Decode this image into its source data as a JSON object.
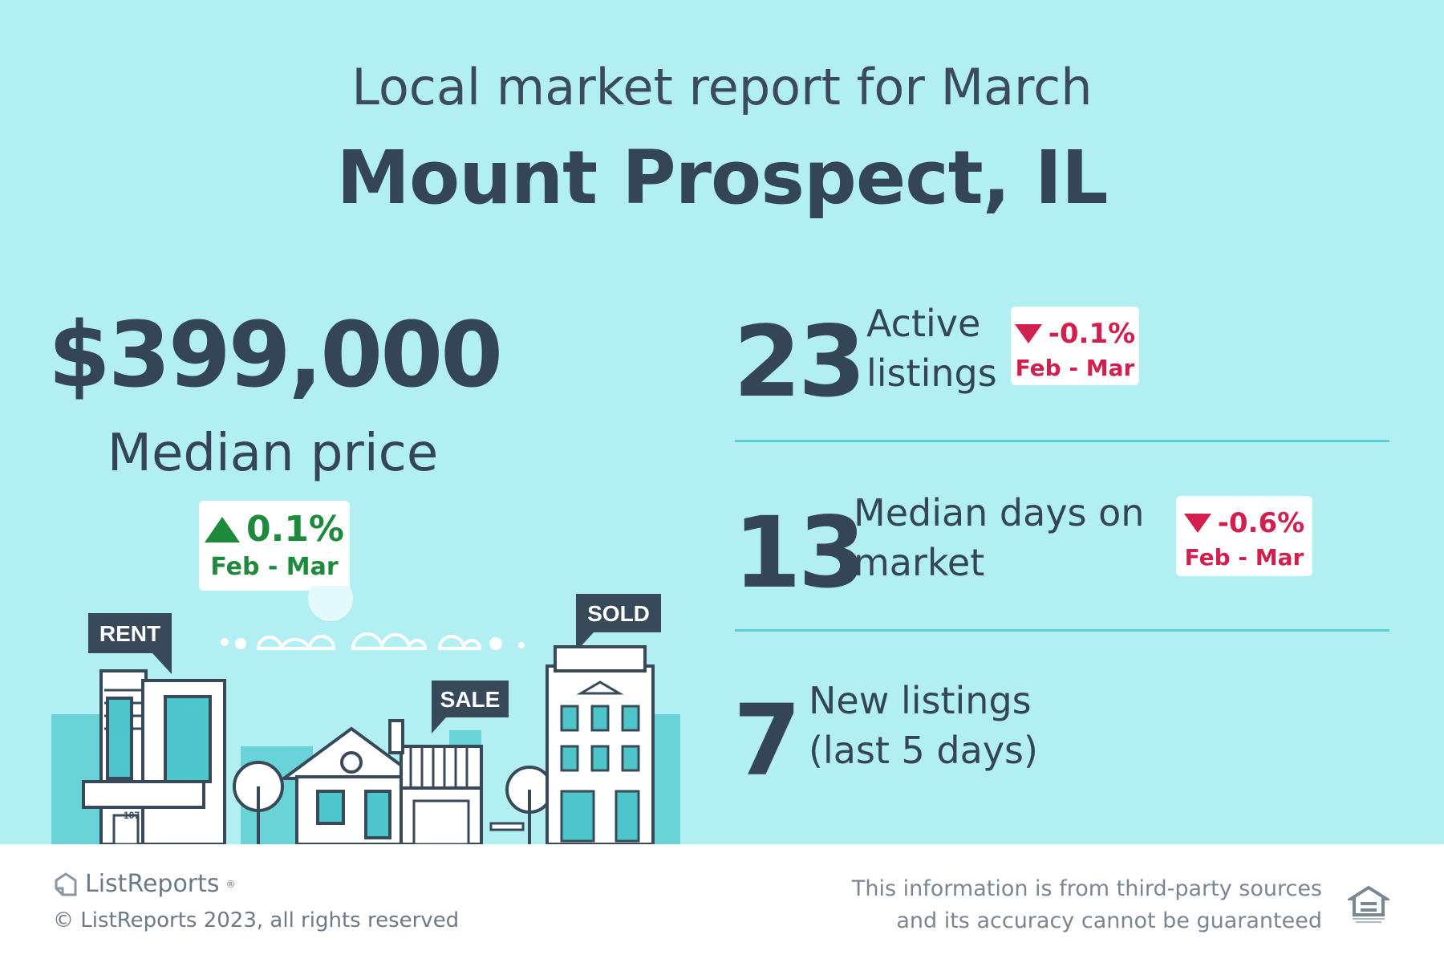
{
  "header": {
    "subtitle": "Local market report for March",
    "title": "Mount Prospect, IL"
  },
  "median_price": {
    "value": "$399,000",
    "label": "Median price",
    "change": "0.1%",
    "period": "Feb - Mar",
    "direction": "up"
  },
  "stats": [
    {
      "value": "23",
      "label_line1": "Active",
      "label_line2": "listings",
      "change": "-0.1%",
      "period": "Feb - Mar",
      "direction": "down"
    },
    {
      "value": "13",
      "label_line1": "Median days on",
      "label_line2": "market",
      "change": "-0.6%",
      "period": "Feb - Mar",
      "direction": "down"
    },
    {
      "value": "7",
      "label_line1": "New listings",
      "label_line2": "(last 5 days)"
    }
  ],
  "illustration": {
    "signs": [
      "RENT",
      "SALE",
      "SOLD"
    ],
    "house_number": "107"
  },
  "footer": {
    "brand": "ListReports",
    "brand_mark": "®",
    "copyright": "© ListReports 2023, all rights reserved",
    "disclaimer_line1": "This information is from third-party sources",
    "disclaimer_line2": "and its accuracy cannot be guaranteed",
    "logo_icon": "equal-housing-opportunity-icon"
  },
  "colors": {
    "background": "#b2eff2",
    "text": "#344556",
    "up": "#1e8a3c",
    "down": "#d21f4e",
    "divider": "#5ccfd5"
  }
}
